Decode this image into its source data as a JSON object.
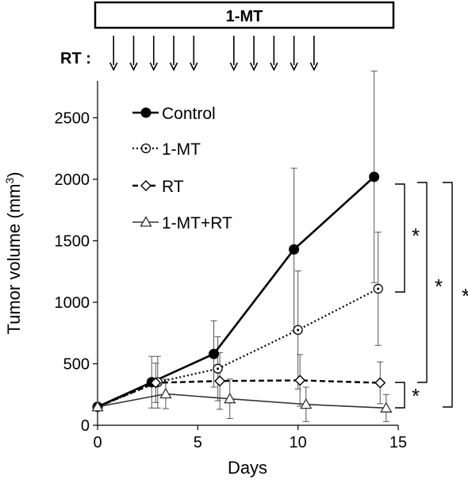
{
  "chart_data": {
    "type": "line",
    "title": "",
    "xlabel": "Days",
    "ylabel": "Tumor volume (mm",
    "ylabel_superscript": "3",
    "ylabel_close": ")",
    "xlim": [
      0,
      15
    ],
    "ylim": [
      0,
      2800
    ],
    "xticks": [
      0,
      5,
      10,
      15
    ],
    "yticks": [
      0,
      500,
      1000,
      1500,
      2000,
      2500
    ],
    "grid": false,
    "legend_position": "top-left",
    "treatment_bar": {
      "label": "1-MT",
      "x_start": 0,
      "x_end": 15
    },
    "rt_schedule": {
      "label": "RT :",
      "days": [
        0.8,
        1.8,
        2.8,
        3.8,
        4.8,
        6.8,
        7.8,
        8.8,
        9.8,
        10.8
      ]
    },
    "series": [
      {
        "name": "Control",
        "style": "solid",
        "marker": "filled-circle",
        "x": [
          0,
          2.7,
          5.8,
          9.8,
          13.8
        ],
        "y": [
          150,
          350,
          580,
          1430,
          2020
        ],
        "err": [
          0,
          210,
          270,
          660,
          860
        ]
      },
      {
        "name": "1-MT",
        "style": "dotted",
        "marker": "dotted-circle",
        "x": [
          0,
          3.0,
          6.0,
          10.0,
          14.0
        ],
        "y": [
          150,
          350,
          460,
          775,
          1110
        ],
        "err": [
          0,
          210,
          260,
          480,
          460
        ]
      },
      {
        "name": "RT",
        "style": "dashed",
        "marker": "diamond",
        "x": [
          0,
          2.9,
          6.1,
          10.1,
          14.1
        ],
        "y": [
          150,
          345,
          360,
          365,
          345
        ],
        "err": [
          0,
          160,
          230,
          210,
          170
        ]
      },
      {
        "name": "1-MT+RT",
        "style": "solid-thin",
        "marker": "triangle",
        "x": [
          0,
          3.4,
          6.6,
          10.4,
          14.4
        ],
        "y": [
          150,
          255,
          215,
          170,
          140
        ],
        "err": [
          0,
          120,
          160,
          140,
          110
        ]
      }
    ],
    "significance": [
      {
        "label": "*",
        "from_series": "Control",
        "to_series": "1-MT"
      },
      {
        "label": "*",
        "from_series": "Control",
        "to_series": "RT"
      },
      {
        "label": "*",
        "from_series": "Control",
        "to_series": "1-MT+RT"
      },
      {
        "label": "*",
        "from_series": "RT",
        "to_series": "1-MT+RT"
      }
    ]
  }
}
